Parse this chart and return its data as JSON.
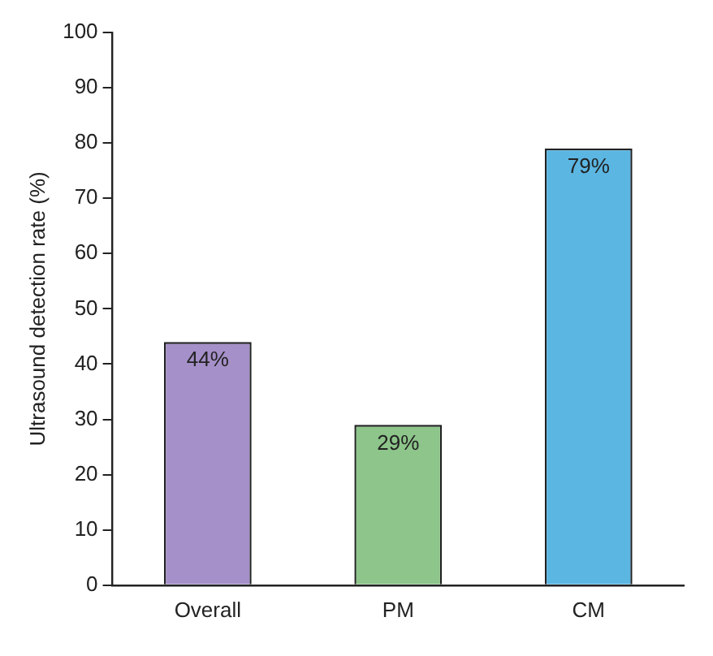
{
  "chart_data": {
    "type": "bar",
    "ylabel": "Ultrasound detection rate (%)",
    "categories": [
      "Overall",
      "PM",
      "CM"
    ],
    "values": [
      44,
      29,
      79
    ],
    "colors": [
      "#a590c9",
      "#8dc58a",
      "#5bb6e2"
    ],
    "value_labels": [
      "44%",
      "29%",
      "79%"
    ],
    "ylim": [
      0,
      100
    ],
    "yticks": [
      0,
      10,
      20,
      30,
      40,
      50,
      60,
      70,
      80,
      90,
      100
    ],
    "grid": false,
    "legend": false
  }
}
